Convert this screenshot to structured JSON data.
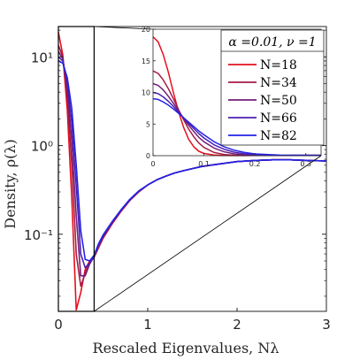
{
  "chart_data": [
    {
      "type": "line",
      "title": "",
      "xlabel": "Rescaled Eigenvalues, Nλ",
      "ylabel": "Density, ρ(λ)",
      "x_scale": "linear",
      "y_scale": "log",
      "xlim": [
        0,
        3
      ],
      "ylim": [
        0.0135,
        22
      ],
      "x_ticks": [
        0,
        1,
        2,
        3
      ],
      "x_tick_labels": [
        "0",
        "1",
        "2",
        "3"
      ],
      "y_ticks": [
        0.1,
        1,
        10
      ],
      "y_tick_labels": [
        "10⁻¹",
        "10⁰",
        "10¹"
      ],
      "grid": false,
      "zoom_box": {
        "x": [
          0,
          0.4
        ]
      },
      "series": [
        {
          "name": "N=18",
          "color": "#e4101e",
          "x": [
            0.0,
            0.05,
            0.1,
            0.15,
            0.2,
            0.25,
            0.3,
            0.35,
            0.4,
            0.45,
            0.5,
            0.6,
            0.7,
            0.8,
            0.9,
            1.0,
            1.1,
            1.2,
            1.3,
            1.4,
            1.5,
            1.6,
            1.7,
            1.8,
            2.0,
            2.2,
            2.4,
            2.6,
            2.8,
            3.0
          ],
          "y": [
            19.0,
            10.5,
            2.5,
            0.25,
            0.014,
            0.022,
            0.04,
            0.05,
            0.055,
            0.07,
            0.09,
            0.13,
            0.18,
            0.24,
            0.3,
            0.36,
            0.41,
            0.45,
            0.49,
            0.52,
            0.55,
            0.58,
            0.6,
            0.62,
            0.66,
            0.68,
            0.69,
            0.69,
            0.68,
            0.67
          ]
        },
        {
          "name": "N=34",
          "color": "#a51c46",
          "x": [
            0.0,
            0.05,
            0.1,
            0.15,
            0.2,
            0.25,
            0.3,
            0.35,
            0.4,
            0.45,
            0.5,
            0.6,
            0.7,
            0.8,
            0.9,
            1.0,
            1.1,
            1.2,
            1.3,
            1.4,
            1.5,
            1.6,
            1.7,
            1.8,
            2.0,
            2.2,
            2.4,
            2.6,
            2.8,
            3.0
          ],
          "y": [
            13.5,
            10.0,
            3.5,
            0.6,
            0.06,
            0.026,
            0.036,
            0.048,
            0.055,
            0.072,
            0.092,
            0.132,
            0.182,
            0.242,
            0.302,
            0.36,
            0.41,
            0.45,
            0.49,
            0.52,
            0.55,
            0.58,
            0.6,
            0.62,
            0.66,
            0.68,
            0.69,
            0.69,
            0.68,
            0.67
          ]
        },
        {
          "name": "N=50",
          "color": "#731e7c",
          "x": [
            0.0,
            0.05,
            0.1,
            0.15,
            0.2,
            0.25,
            0.3,
            0.35,
            0.4,
            0.45,
            0.5,
            0.6,
            0.7,
            0.8,
            0.9,
            1.0,
            1.1,
            1.2,
            1.3,
            1.4,
            1.5,
            1.6,
            1.7,
            1.8,
            2.0,
            2.2,
            2.4,
            2.6,
            2.8,
            3.0
          ],
          "y": [
            11.5,
            9.5,
            4.5,
            1.1,
            0.16,
            0.034,
            0.034,
            0.046,
            0.056,
            0.074,
            0.094,
            0.134,
            0.184,
            0.244,
            0.304,
            0.36,
            0.41,
            0.45,
            0.49,
            0.52,
            0.55,
            0.58,
            0.6,
            0.62,
            0.66,
            0.68,
            0.69,
            0.69,
            0.68,
            0.67
          ]
        },
        {
          "name": "N=66",
          "color": "#4c1fb4",
          "x": [
            0.0,
            0.05,
            0.1,
            0.15,
            0.2,
            0.25,
            0.3,
            0.35,
            0.4,
            0.45,
            0.5,
            0.6,
            0.7,
            0.8,
            0.9,
            1.0,
            1.1,
            1.2,
            1.3,
            1.4,
            1.5,
            1.6,
            1.7,
            1.8,
            2.0,
            2.2,
            2.4,
            2.6,
            2.8,
            3.0
          ],
          "y": [
            10.0,
            9.0,
            5.2,
            1.8,
            0.35,
            0.06,
            0.042,
            0.047,
            0.057,
            0.076,
            0.096,
            0.136,
            0.186,
            0.246,
            0.306,
            0.36,
            0.41,
            0.45,
            0.49,
            0.52,
            0.55,
            0.58,
            0.6,
            0.62,
            0.66,
            0.68,
            0.69,
            0.69,
            0.68,
            0.67
          ]
        },
        {
          "name": "N=82",
          "color": "#2323e6",
          "x": [
            0.0,
            0.05,
            0.1,
            0.15,
            0.2,
            0.25,
            0.3,
            0.35,
            0.4,
            0.45,
            0.5,
            0.6,
            0.7,
            0.8,
            0.9,
            1.0,
            1.1,
            1.2,
            1.3,
            1.4,
            1.5,
            1.6,
            1.7,
            1.8,
            2.0,
            2.2,
            2.4,
            2.6,
            2.8,
            3.0
          ],
          "y": [
            9.0,
            8.5,
            5.8,
            2.6,
            0.6,
            0.11,
            0.052,
            0.05,
            0.058,
            0.078,
            0.098,
            0.138,
            0.188,
            0.248,
            0.308,
            0.36,
            0.41,
            0.45,
            0.49,
            0.52,
            0.55,
            0.58,
            0.6,
            0.62,
            0.66,
            0.68,
            0.69,
            0.69,
            0.68,
            0.67
          ]
        }
      ]
    },
    {
      "type": "line",
      "title": "",
      "x_scale": "linear",
      "y_scale": "linear",
      "xlim": [
        0,
        0.33
      ],
      "ylim": [
        0,
        20
      ],
      "x_ticks": [
        0,
        0.1,
        0.2,
        0.3
      ],
      "x_tick_labels": [
        "0",
        "0.1",
        "0.2",
        "0.3"
      ],
      "y_ticks": [
        0,
        5,
        10,
        15,
        20
      ],
      "y_tick_labels": [
        "0",
        "5",
        "10",
        "15",
        "20"
      ],
      "grid": false,
      "legend": {
        "title": "α =0.01, ν =1",
        "placement": "top-right",
        "entries": [
          "N=18",
          "N=34",
          "N=50",
          "N=66",
          "N=82"
        ]
      },
      "series": [
        {
          "name": "N=18",
          "color": "#e4101e",
          "x": [
            0.0,
            0.01,
            0.02,
            0.03,
            0.04,
            0.05,
            0.06,
            0.07,
            0.08,
            0.09,
            0.1,
            0.12,
            0.14,
            0.16,
            0.18,
            0.2,
            0.25,
            0.3,
            0.33
          ],
          "y": [
            18.8,
            18.0,
            16.0,
            13.2,
            10.0,
            7.0,
            4.5,
            2.6,
            1.4,
            0.7,
            0.35,
            0.1,
            0.03,
            0.02,
            0.02,
            0.03,
            0.04,
            0.05,
            0.05
          ]
        },
        {
          "name": "N=34",
          "color": "#a51c46",
          "x": [
            0.0,
            0.01,
            0.02,
            0.03,
            0.04,
            0.05,
            0.06,
            0.07,
            0.08,
            0.09,
            0.1,
            0.12,
            0.14,
            0.16,
            0.18,
            0.2,
            0.25,
            0.3,
            0.33
          ],
          "y": [
            13.4,
            13.0,
            12.0,
            10.6,
            9.0,
            7.3,
            5.7,
            4.2,
            3.0,
            2.0,
            1.3,
            0.5,
            0.18,
            0.07,
            0.04,
            0.03,
            0.04,
            0.05,
            0.05
          ]
        },
        {
          "name": "N=50",
          "color": "#731e7c",
          "x": [
            0.0,
            0.01,
            0.02,
            0.03,
            0.04,
            0.05,
            0.06,
            0.07,
            0.08,
            0.09,
            0.1,
            0.12,
            0.14,
            0.16,
            0.18,
            0.2,
            0.25,
            0.3,
            0.33
          ],
          "y": [
            11.4,
            11.1,
            10.4,
            9.4,
            8.3,
            7.1,
            5.9,
            4.8,
            3.8,
            2.9,
            2.2,
            1.2,
            0.6,
            0.28,
            0.13,
            0.07,
            0.04,
            0.05,
            0.05
          ]
        },
        {
          "name": "N=66",
          "color": "#4c1fb4",
          "x": [
            0.0,
            0.01,
            0.02,
            0.03,
            0.04,
            0.05,
            0.06,
            0.07,
            0.08,
            0.09,
            0.1,
            0.12,
            0.14,
            0.16,
            0.18,
            0.2,
            0.25,
            0.3,
            0.33
          ],
          "y": [
            10.0,
            9.8,
            9.3,
            8.6,
            7.8,
            6.9,
            6.0,
            5.1,
            4.3,
            3.5,
            2.8,
            1.7,
            1.0,
            0.55,
            0.3,
            0.16,
            0.06,
            0.05,
            0.05
          ]
        },
        {
          "name": "N=82",
          "color": "#2323e6",
          "x": [
            0.0,
            0.01,
            0.02,
            0.03,
            0.04,
            0.05,
            0.06,
            0.07,
            0.08,
            0.09,
            0.1,
            0.12,
            0.14,
            0.16,
            0.18,
            0.2,
            0.25,
            0.3,
            0.33
          ],
          "y": [
            9.0,
            8.9,
            8.5,
            8.0,
            7.4,
            6.7,
            6.0,
            5.3,
            4.6,
            3.9,
            3.3,
            2.2,
            1.4,
            0.85,
            0.5,
            0.28,
            0.09,
            0.05,
            0.05
          ]
        }
      ]
    }
  ]
}
